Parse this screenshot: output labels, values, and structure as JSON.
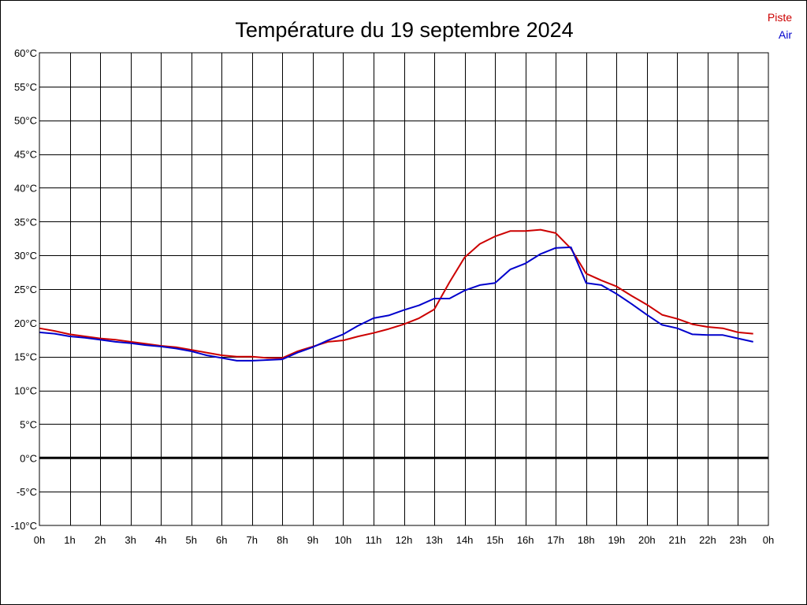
{
  "chart_data": {
    "type": "line",
    "title": "Température du 19 septembre 2024",
    "xlabel": "",
    "ylabel": "",
    "x_ticks": [
      "0h",
      "1h",
      "2h",
      "3h",
      "4h",
      "5h",
      "6h",
      "7h",
      "8h",
      "9h",
      "10h",
      "11h",
      "12h",
      "13h",
      "14h",
      "15h",
      "16h",
      "17h",
      "18h",
      "19h",
      "20h",
      "21h",
      "22h",
      "23h",
      "0h"
    ],
    "y_ticks": [
      "-10°C",
      "-5°C",
      "0°C",
      "5°C",
      "10°C",
      "15°C",
      "20°C",
      "25°C",
      "30°C",
      "35°C",
      "40°C",
      "45°C",
      "50°C",
      "55°C",
      "60°C"
    ],
    "xlim": [
      0,
      24
    ],
    "ylim": [
      -10,
      60
    ],
    "grid": true,
    "legend_position": "top-right",
    "series": [
      {
        "name": "Piste",
        "color": "#cc0000",
        "x": [
          0,
          0.5,
          1,
          1.5,
          2,
          2.5,
          3,
          3.5,
          4,
          4.5,
          5,
          5.5,
          6,
          6.5,
          7,
          7.5,
          8,
          8.5,
          9,
          9.5,
          10,
          10.5,
          11,
          11.5,
          12,
          12.5,
          13,
          13.5,
          14,
          14.5,
          15,
          15.5,
          16,
          16.5,
          17,
          17.5,
          18,
          18.5,
          19,
          19.5,
          20,
          20.5,
          21,
          21.5,
          22,
          22.5,
          23,
          23.5
        ],
        "values": [
          19.2,
          18.8,
          18.3,
          18,
          17.7,
          17.5,
          17.2,
          16.9,
          16.6,
          16.4,
          16,
          15.6,
          15.2,
          15,
          15,
          14.8,
          14.8,
          15.8,
          16.5,
          17.2,
          17.4,
          18,
          18.5,
          19.1,
          19.8,
          20.7,
          22,
          26,
          29.7,
          31.7,
          32.8,
          33.6,
          33.6,
          33.8,
          33.3,
          31,
          27.3,
          26.3,
          25.4,
          24,
          22.7,
          21.2,
          20.6,
          19.8,
          19.4,
          19.2,
          18.6,
          18.4
        ]
      },
      {
        "name": "Air",
        "color": "#0000cc",
        "x": [
          0,
          0.5,
          1,
          1.5,
          2,
          2.5,
          3,
          3.5,
          4,
          4.5,
          5,
          5.5,
          6,
          6.5,
          7,
          7.5,
          8,
          8.5,
          9,
          9.5,
          10,
          10.5,
          11,
          11.5,
          12,
          12.5,
          13,
          13.5,
          14,
          14.5,
          15,
          15.5,
          16,
          16.5,
          17,
          17.5,
          18,
          18.5,
          19,
          19.5,
          20,
          20.5,
          21,
          21.5,
          22,
          22.5,
          23,
          23.5
        ],
        "values": [
          18.6,
          18.4,
          18,
          17.8,
          17.5,
          17.2,
          17,
          16.7,
          16.5,
          16.2,
          15.8,
          15.2,
          14.8,
          14.4,
          14.4,
          14.5,
          14.6,
          15.6,
          16.4,
          17.4,
          18.3,
          19.6,
          20.7,
          21.1,
          21.9,
          22.6,
          23.6,
          23.6,
          24.8,
          25.6,
          25.9,
          27.9,
          28.8,
          30.2,
          31.1,
          31.2,
          25.9,
          25.6,
          24.3,
          22.8,
          21.2,
          19.7,
          19.2,
          18.3,
          18.2,
          18.2,
          17.7,
          17.2
        ]
      }
    ]
  }
}
